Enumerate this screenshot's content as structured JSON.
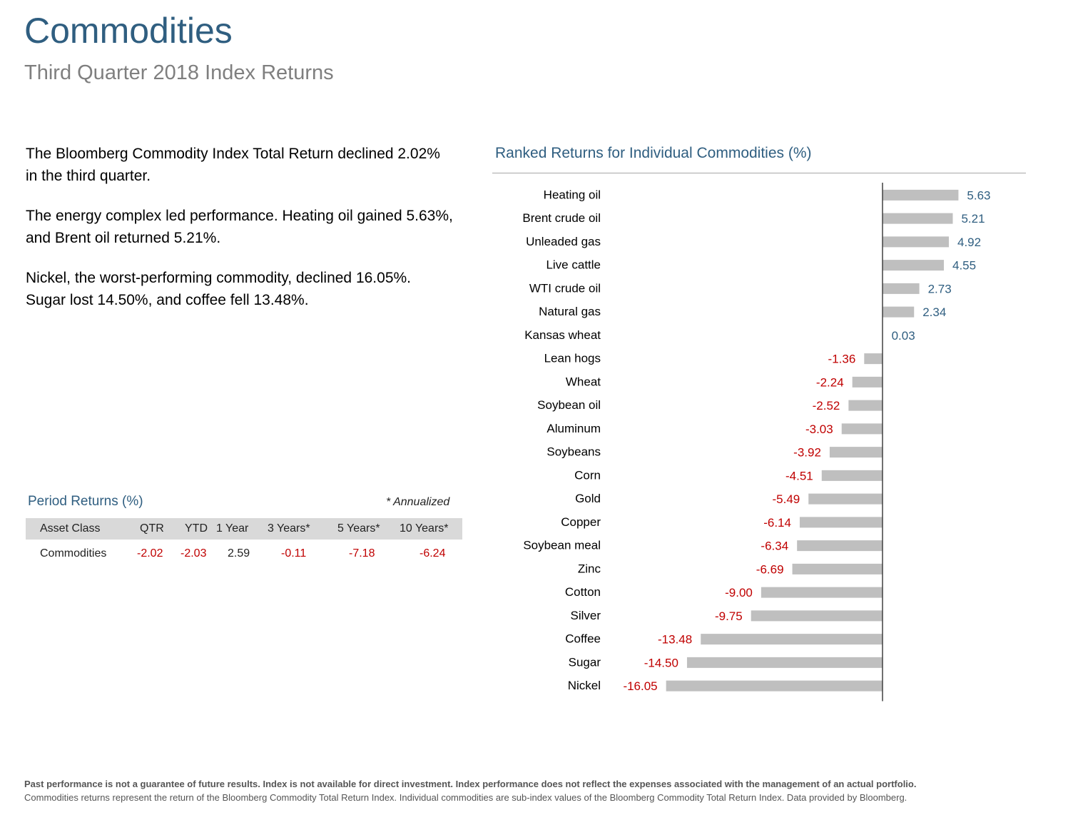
{
  "header": {
    "title": "Commodities",
    "subtitle": "Third Quarter 2018 Index Returns"
  },
  "summary": {
    "p1": "The Bloomberg Commodity Index Total Return declined 2.02% in the third quarter.",
    "p2": "The energy complex led performance. Heating oil gained 5.63%, and Brent oil returned 5.21%.",
    "p3": "Nickel, the worst-performing commodity, declined 16.05%. Sugar lost 14.50%, and coffee fell 13.48%."
  },
  "period_returns": {
    "title": "Period Returns (%)",
    "note": "* Annualized",
    "headers": [
      "Asset Class",
      "QTR",
      "YTD",
      "1 Year",
      "3 Years*",
      "5 Years*",
      "10 Years*"
    ],
    "row": [
      "Commodities",
      "-2.02",
      "-2.03",
      "2.59",
      "-0.11",
      "-7.18",
      "-6.24"
    ]
  },
  "chart_data": {
    "type": "bar",
    "orientation": "horizontal",
    "title": "Ranked Returns for Individual Commodities (%)",
    "categories": [
      "Heating oil",
      "Brent crude oil",
      "Unleaded gas",
      "Live cattle",
      "WTI crude oil",
      "Natural gas",
      "Kansas wheat",
      "Lean hogs",
      "Wheat",
      "Soybean oil",
      "Aluminum",
      "Soybeans",
      "Corn",
      "Gold",
      "Copper",
      "Soybean meal",
      "Zinc",
      "Cotton",
      "Silver",
      "Coffee",
      "Sugar",
      "Nickel"
    ],
    "values": [
      5.63,
      5.21,
      4.92,
      4.55,
      2.73,
      2.34,
      0.03,
      -1.36,
      -2.24,
      -2.52,
      -3.03,
      -3.92,
      -4.51,
      -5.49,
      -6.14,
      -6.34,
      -6.69,
      -9.0,
      -9.75,
      -13.48,
      -14.5,
      -16.05
    ],
    "labels": [
      "5.63",
      "5.21",
      "4.92",
      "4.55",
      "2.73",
      "2.34",
      "0.03",
      "-1.36",
      "-2.24",
      "-2.52",
      "-3.03",
      "-3.92",
      "-4.51",
      "-5.49",
      "-6.14",
      "-6.34",
      "-6.69",
      "-9.00",
      "-9.75",
      "-13.48",
      "-14.50",
      "-16.05"
    ],
    "colors": {
      "bar": "#bfbfbf",
      "positive_label": "#2f5e80",
      "negative_label": "#c00000",
      "axis": "#404040"
    }
  },
  "footer": {
    "line1": "Past performance is not a guarantee of future results. Index is not available for direct investment. Index performance does not reflect the expenses associated with the management of an actual portfolio.",
    "line2": "Commodities returns represent the return of the Bloomberg Commodity Total Return Index. Individual commodities are sub-index values of the Bloomberg Commodity Total Return Index. Data provided by Bloomberg."
  }
}
